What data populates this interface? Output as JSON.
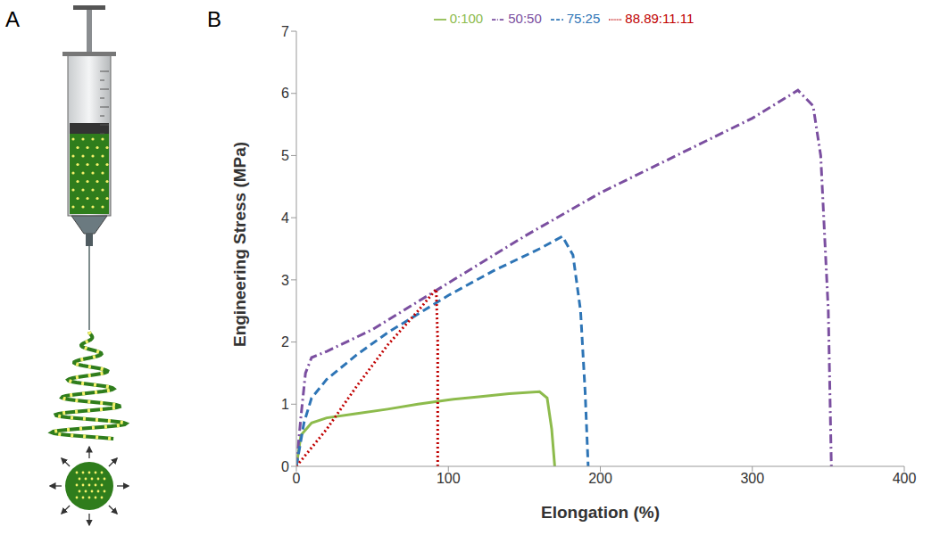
{
  "panel_labels": [
    "A",
    "B"
  ],
  "chart_data": {
    "type": "line",
    "xlabel": "Elongation (%)",
    "ylabel": "Engineering Stress (MPa)",
    "xlim": [
      0,
      400
    ],
    "xticks": [
      0,
      100,
      200,
      300,
      400
    ],
    "ylim": [
      0,
      7
    ],
    "yticks": [
      0,
      1,
      2,
      3,
      4,
      5,
      6,
      7
    ],
    "grid": false,
    "legend": "top",
    "series": [
      {
        "name": "0:100",
        "color": "#8dbb4c",
        "line_style": "solid",
        "x": [
          0,
          3,
          10,
          20,
          40,
          60,
          80,
          100,
          120,
          140,
          160,
          165,
          168,
          170
        ],
        "values": [
          0,
          0.5,
          0.7,
          0.78,
          0.85,
          0.92,
          1.0,
          1.07,
          1.12,
          1.17,
          1.2,
          1.1,
          0.6,
          0
        ]
      },
      {
        "name": "50:50",
        "color": "#7b4fa0",
        "line_style": "dashdot",
        "x": [
          0,
          3,
          6,
          10,
          20,
          50,
          100,
          150,
          200,
          250,
          300,
          330,
          340,
          345,
          350,
          352
        ],
        "values": [
          0,
          0.8,
          1.5,
          1.75,
          1.85,
          2.2,
          2.95,
          3.7,
          4.4,
          5.0,
          5.6,
          6.05,
          5.8,
          5.0,
          2.5,
          0
        ]
      },
      {
        "name": "75:25",
        "color": "#2e75b6",
        "line_style": "dashed",
        "x": [
          0,
          5,
          10,
          20,
          40,
          60,
          80,
          100,
          130,
          160,
          175,
          182,
          187,
          190,
          192
        ],
        "values": [
          0,
          0.7,
          1.1,
          1.4,
          1.8,
          2.15,
          2.45,
          2.75,
          3.15,
          3.5,
          3.7,
          3.4,
          2.5,
          1.2,
          0
        ]
      },
      {
        "name": "88.89:11.11",
        "color": "#c00000",
        "line_style": "dotted",
        "x": [
          0,
          20,
          40,
          60,
          80,
          92,
          93,
          93
        ],
        "values": [
          0,
          0.6,
          1.3,
          1.95,
          2.5,
          2.85,
          2.0,
          0
        ]
      }
    ]
  }
}
